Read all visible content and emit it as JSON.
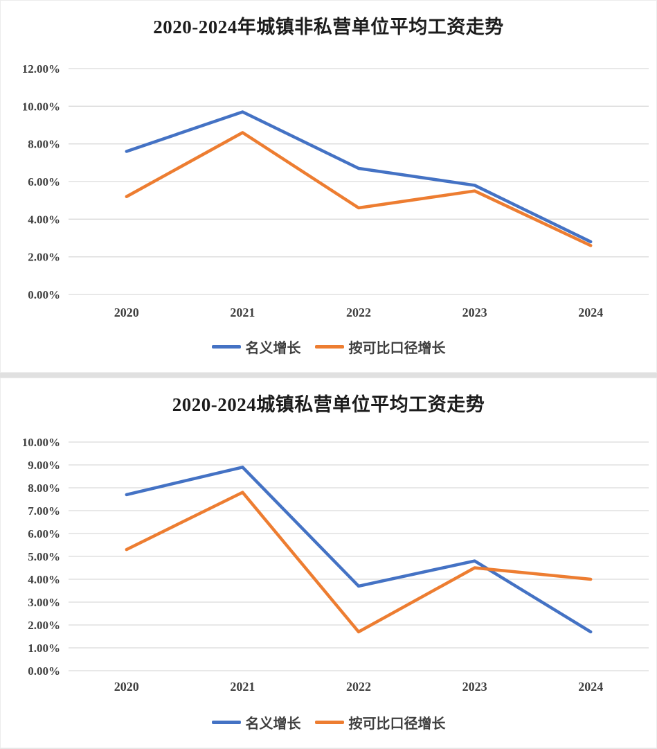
{
  "colors": {
    "grid": "#d9d9d9",
    "axis_text": "#3f3f3f",
    "title": "#1c1c1c",
    "series_blue": "#4472c4",
    "series_orange": "#ed7d31"
  },
  "chart_data": [
    {
      "type": "line",
      "title": "2020-2024年城镇非私营单位平均工资走势",
      "categories": [
        "2020",
        "2021",
        "2022",
        "2023",
        "2024"
      ],
      "series": [
        {
          "name": "名义增长",
          "color": "#4472c4",
          "values": [
            7.6,
            9.7,
            6.7,
            5.8,
            2.8
          ]
        },
        {
          "name": "按可比口径增长",
          "color": "#ed7d31",
          "values": [
            5.2,
            8.6,
            4.6,
            5.5,
            2.6
          ]
        }
      ],
      "ylim": [
        0,
        12
      ],
      "ytick_step": 2,
      "ytick_labels": [
        "0.00%",
        "2.00%",
        "4.00%",
        "6.00%",
        "8.00%",
        "10.00%",
        "12.00%"
      ],
      "grid": true,
      "legend_position": "bottom"
    },
    {
      "type": "line",
      "title": "2020-2024城镇私营单位平均工资走势",
      "categories": [
        "2020",
        "2021",
        "2022",
        "2023",
        "2024"
      ],
      "series": [
        {
          "name": "名义增长",
          "color": "#4472c4",
          "values": [
            7.7,
            8.9,
            3.7,
            4.8,
            1.7
          ]
        },
        {
          "name": "按可比口径增长",
          "color": "#ed7d31",
          "values": [
            5.3,
            7.8,
            1.7,
            4.5,
            4.0
          ]
        }
      ],
      "ylim": [
        0,
        10
      ],
      "ytick_step": 1,
      "ytick_labels": [
        "0.00%",
        "1.00%",
        "2.00%",
        "3.00%",
        "4.00%",
        "5.00%",
        "6.00%",
        "7.00%",
        "8.00%",
        "9.00%",
        "10.00%"
      ],
      "grid": true,
      "legend_position": "bottom"
    }
  ]
}
